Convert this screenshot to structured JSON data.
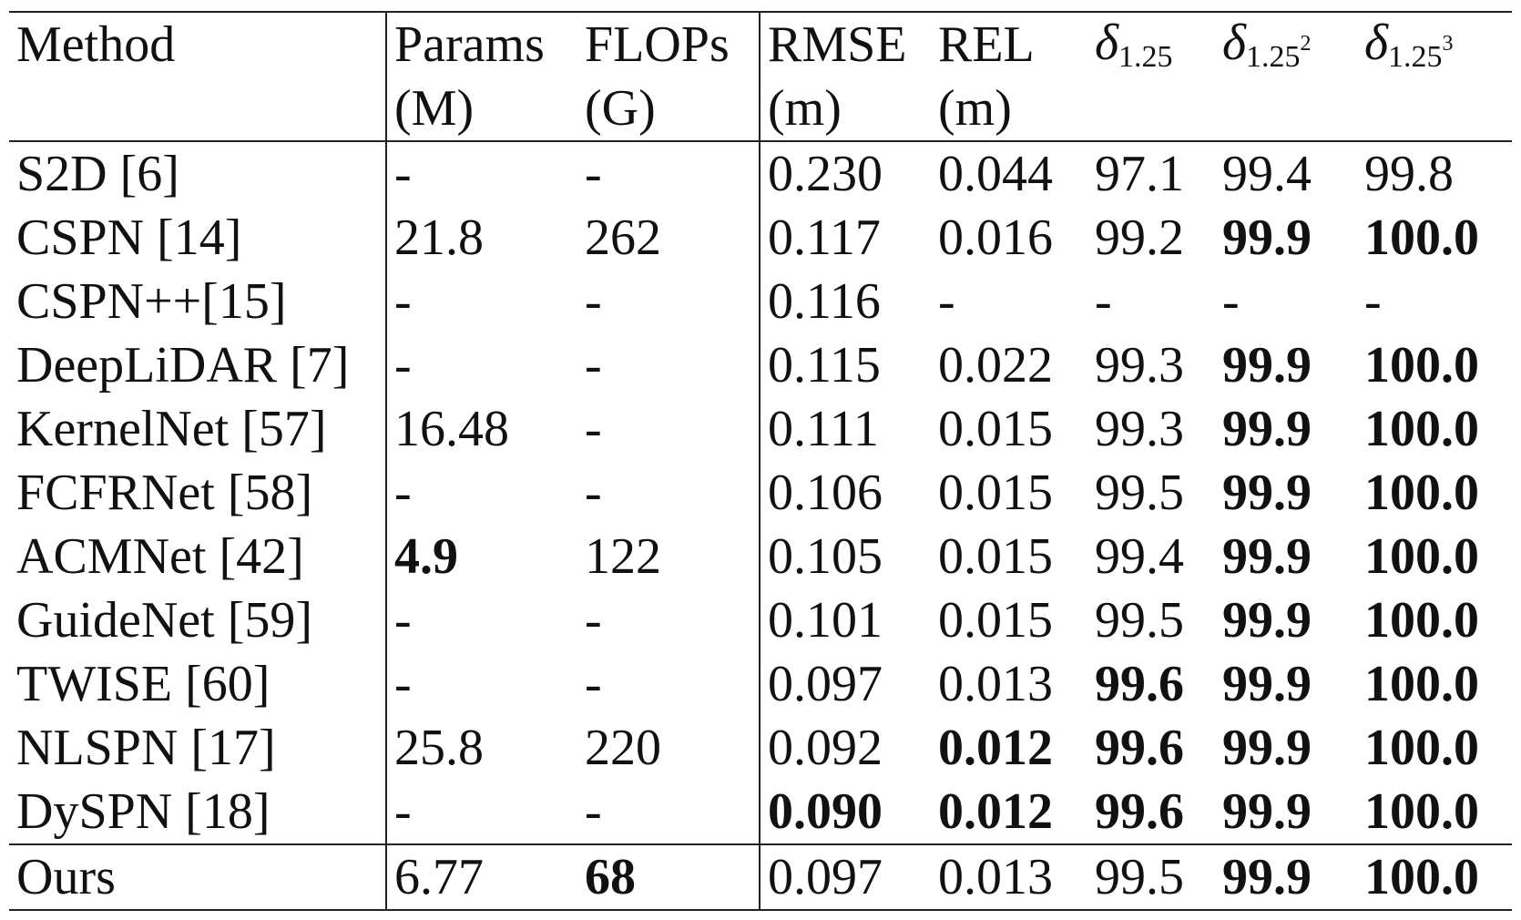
{
  "table": {
    "header": {
      "row1": [
        "Method",
        "Params",
        "FLOPs",
        "RMSE",
        "REL"
      ],
      "row2": [
        "(M)",
        "(G)",
        "(m)",
        "(m)"
      ],
      "delta_symbol": "δ",
      "delta1_sub": "1.25",
      "delta2_sub": "1.25",
      "delta2_sup": "2",
      "delta3_sub": "1.25",
      "delta3_sup": "3"
    },
    "rows": [
      {
        "method": "S2D [6]",
        "params": "-",
        "flops": "-",
        "rmse": "0.230",
        "rel": "0.044",
        "d1": "97.1",
        "d2": "99.4",
        "d3": "99.8"
      },
      {
        "method": "CSPN [14]",
        "params": "21.8",
        "flops": "262",
        "rmse": "0.117",
        "rel": "0.016",
        "d1": "99.2",
        "d2": "99.9",
        "d3": "100.0"
      },
      {
        "method": "CSPN++[15]",
        "params": "-",
        "flops": "-",
        "rmse": "0.116",
        "rel": "-",
        "d1": "-",
        "d2": "-",
        "d3": "-"
      },
      {
        "method": "DeepLiDAR [7]",
        "params": "-",
        "flops": "-",
        "rmse": "0.115",
        "rel": "0.022",
        "d1": "99.3",
        "d2": "99.9",
        "d3": "100.0"
      },
      {
        "method": "KernelNet [57]",
        "params": "16.48",
        "flops": "-",
        "rmse": "0.111",
        "rel": "0.015",
        "d1": "99.3",
        "d2": "99.9",
        "d3": "100.0"
      },
      {
        "method": "FCFRNet [58]",
        "params": "-",
        "flops": "-",
        "rmse": "0.106",
        "rel": "0.015",
        "d1": "99.5",
        "d2": "99.9",
        "d3": "100.0"
      },
      {
        "method": "ACMNet [42]",
        "params": "4.9",
        "flops": "122",
        "rmse": "0.105",
        "rel": "0.015",
        "d1": "99.4",
        "d2": "99.9",
        "d3": "100.0"
      },
      {
        "method": "GuideNet [59]",
        "params": "-",
        "flops": "-",
        "rmse": "0.101",
        "rel": "0.015",
        "d1": "99.5",
        "d2": "99.9",
        "d3": "100.0"
      },
      {
        "method": "TWISE [60]",
        "params": "-",
        "flops": "-",
        "rmse": "0.097",
        "rel": "0.013",
        "d1": "99.6",
        "d2": "99.9",
        "d3": "100.0"
      },
      {
        "method": "NLSPN [17]",
        "params": "25.8",
        "flops": "220",
        "rmse": "0.092",
        "rel": "0.012",
        "d1": "99.6",
        "d2": "99.9",
        "d3": "100.0"
      },
      {
        "method": "DySPN [18]",
        "params": "-",
        "flops": "-",
        "rmse": "0.090",
        "rel": "0.012",
        "d1": "99.6",
        "d2": "99.9",
        "d3": "100.0"
      }
    ],
    "ours": {
      "method": "Ours",
      "params": "6.77",
      "flops": "68",
      "rmse": "0.097",
      "rel": "0.013",
      "d1": "99.5",
      "d2": "99.9",
      "d3": "100.0"
    }
  },
  "chart_data": {
    "type": "table",
    "columns": [
      "Method",
      "Params (M)",
      "FLOPs (G)",
      "RMSE (m)",
      "REL (m)",
      "δ1.25",
      "δ1.25^2",
      "δ1.25^3"
    ],
    "rows": [
      [
        "S2D [6]",
        "-",
        "-",
        "0.230",
        "0.044",
        "97.1",
        "99.4",
        "99.8"
      ],
      [
        "CSPN [14]",
        "21.8",
        "262",
        "0.117",
        "0.016",
        "99.2",
        "99.9",
        "100.0"
      ],
      [
        "CSPN++[15]",
        "-",
        "-",
        "0.116",
        "-",
        "-",
        "-",
        "-"
      ],
      [
        "DeepLiDAR [7]",
        "-",
        "-",
        "0.115",
        "0.022",
        "99.3",
        "99.9",
        "100.0"
      ],
      [
        "KernelNet [57]",
        "16.48",
        "-",
        "0.111",
        "0.015",
        "99.3",
        "99.9",
        "100.0"
      ],
      [
        "FCFRNet [58]",
        "-",
        "-",
        "0.106",
        "0.015",
        "99.5",
        "99.9",
        "100.0"
      ],
      [
        "ACMNet [42]",
        "4.9",
        "122",
        "0.105",
        "0.015",
        "99.4",
        "99.9",
        "100.0"
      ],
      [
        "GuideNet [59]",
        "-",
        "-",
        "0.101",
        "0.015",
        "99.5",
        "99.9",
        "100.0"
      ],
      [
        "TWISE [60]",
        "-",
        "-",
        "0.097",
        "0.013",
        "99.6",
        "99.9",
        "100.0"
      ],
      [
        "NLSPN [17]",
        "25.8",
        "220",
        "0.092",
        "0.012",
        "99.6",
        "99.9",
        "100.0"
      ],
      [
        "DySPN [18]",
        "-",
        "-",
        "0.090",
        "0.012",
        "99.6",
        "99.9",
        "100.0"
      ],
      [
        "Ours",
        "6.77",
        "68",
        "0.097",
        "0.013",
        "99.5",
        "99.9",
        "100.0"
      ]
    ],
    "bold_cells": [
      [
        "CSPN [14]",
        "δ1.25^2"
      ],
      [
        "CSPN [14]",
        "δ1.25^3"
      ],
      [
        "DeepLiDAR [7]",
        "δ1.25^2"
      ],
      [
        "DeepLiDAR [7]",
        "δ1.25^3"
      ],
      [
        "KernelNet [57]",
        "δ1.25^2"
      ],
      [
        "KernelNet [57]",
        "δ1.25^3"
      ],
      [
        "FCFRNet [58]",
        "δ1.25^2"
      ],
      [
        "FCFRNet [58]",
        "δ1.25^3"
      ],
      [
        "ACMNet [42]",
        "Params (M)"
      ],
      [
        "ACMNet [42]",
        "δ1.25^2"
      ],
      [
        "ACMNet [42]",
        "δ1.25^3"
      ],
      [
        "GuideNet [59]",
        "δ1.25^2"
      ],
      [
        "GuideNet [59]",
        "δ1.25^3"
      ],
      [
        "TWISE [60]",
        "δ1.25"
      ],
      [
        "TWISE [60]",
        "δ1.25^2"
      ],
      [
        "TWISE [60]",
        "δ1.25^3"
      ],
      [
        "NLSPN [17]",
        "REL (m)"
      ],
      [
        "NLSPN [17]",
        "δ1.25"
      ],
      [
        "NLSPN [17]",
        "δ1.25^2"
      ],
      [
        "NLSPN [17]",
        "δ1.25^3"
      ],
      [
        "DySPN [18]",
        "RMSE (m)"
      ],
      [
        "DySPN [18]",
        "REL (m)"
      ],
      [
        "DySPN [18]",
        "δ1.25"
      ],
      [
        "DySPN [18]",
        "δ1.25^2"
      ],
      [
        "DySPN [18]",
        "δ1.25^3"
      ],
      [
        "Ours",
        "FLOPs (G)"
      ],
      [
        "Ours",
        "δ1.25^2"
      ],
      [
        "Ours",
        "δ1.25^3"
      ]
    ]
  }
}
